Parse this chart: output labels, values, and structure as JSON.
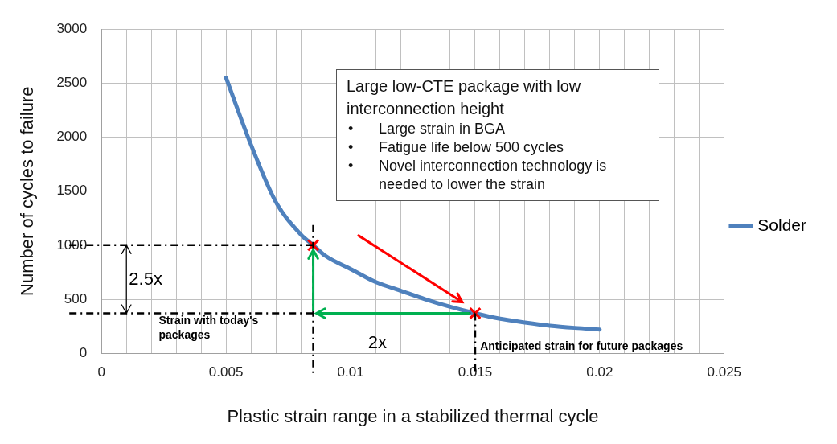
{
  "chart_data": {
    "type": "line",
    "xlabel": "Plastic strain range in a stabilized thermal cycle",
    "ylabel": "Number of cycles to failure",
    "xlim": [
      0,
      0.025
    ],
    "ylim": [
      0,
      3000
    ],
    "xticks": [
      0,
      {
        "value": 0.001,
        "label": null
      },
      {
        "value": 0.002,
        "label": null
      },
      {
        "value": 0.003,
        "label": null
      },
      {
        "value": 0.004,
        "label": null
      },
      0.005,
      {
        "value": 0.006,
        "label": null
      },
      {
        "value": 0.007,
        "label": null
      },
      {
        "value": 0.008,
        "label": null
      },
      {
        "value": 0.009,
        "label": null
      },
      0.01,
      {
        "value": 0.011,
        "label": null
      },
      {
        "value": 0.012,
        "label": null
      },
      {
        "value": 0.013,
        "label": null
      },
      {
        "value": 0.014,
        "label": null
      },
      0.015,
      {
        "value": 0.016,
        "label": null
      },
      {
        "value": 0.017,
        "label": null
      },
      {
        "value": 0.018,
        "label": null
      },
      {
        "value": 0.019,
        "label": null
      },
      0.02,
      {
        "value": 0.021,
        "label": null
      },
      {
        "value": 0.022,
        "label": null
      },
      {
        "value": 0.023,
        "label": null
      },
      {
        "value": 0.024,
        "label": null
      },
      0.025
    ],
    "yticks": [
      0,
      500,
      1000,
      1500,
      2000,
      2500,
      3000
    ],
    "grid": true,
    "legend": "right",
    "series": [
      {
        "name": "Solder",
        "color": "#4f81bd",
        "x": [
          0.005,
          0.006,
          0.007,
          0.008,
          0.0085,
          0.009,
          0.01,
          0.011,
          0.012,
          0.013,
          0.014,
          0.015,
          0.016,
          0.017,
          0.018,
          0.019,
          0.02
        ],
        "values": [
          2550,
          1930,
          1400,
          1100,
          1000,
          900,
          780,
          660,
          580,
          500,
          430,
          370,
          320,
          285,
          255,
          235,
          220
        ]
      },
      {
        "type": "scatter",
        "color": "#ff0000",
        "marker": "cross",
        "x": [
          0.0085,
          0.015
        ],
        "values": [
          1000,
          370
        ]
      }
    ],
    "ref_lines": [
      {
        "axis": "y",
        "value": 1000,
        "line_style": "dashed"
      },
      {
        "axis": "y",
        "value": 370,
        "line_style": "dashed"
      },
      {
        "axis": "x",
        "value": 0.0085,
        "line_style": "dashed"
      },
      {
        "axis": "x",
        "value": 0.015,
        "line_style": "dashed"
      }
    ],
    "annotations": [
      "Large low-CTE package with low interconnection height",
      "• Large strain in BGA",
      "• Fatigue life below 500 cycles",
      "• Novel interconnection technology is needed to lower the strain",
      "2.5x",
      "Strain with today's packages",
      "2x",
      "Anticipated strain for future packages"
    ]
  }
}
